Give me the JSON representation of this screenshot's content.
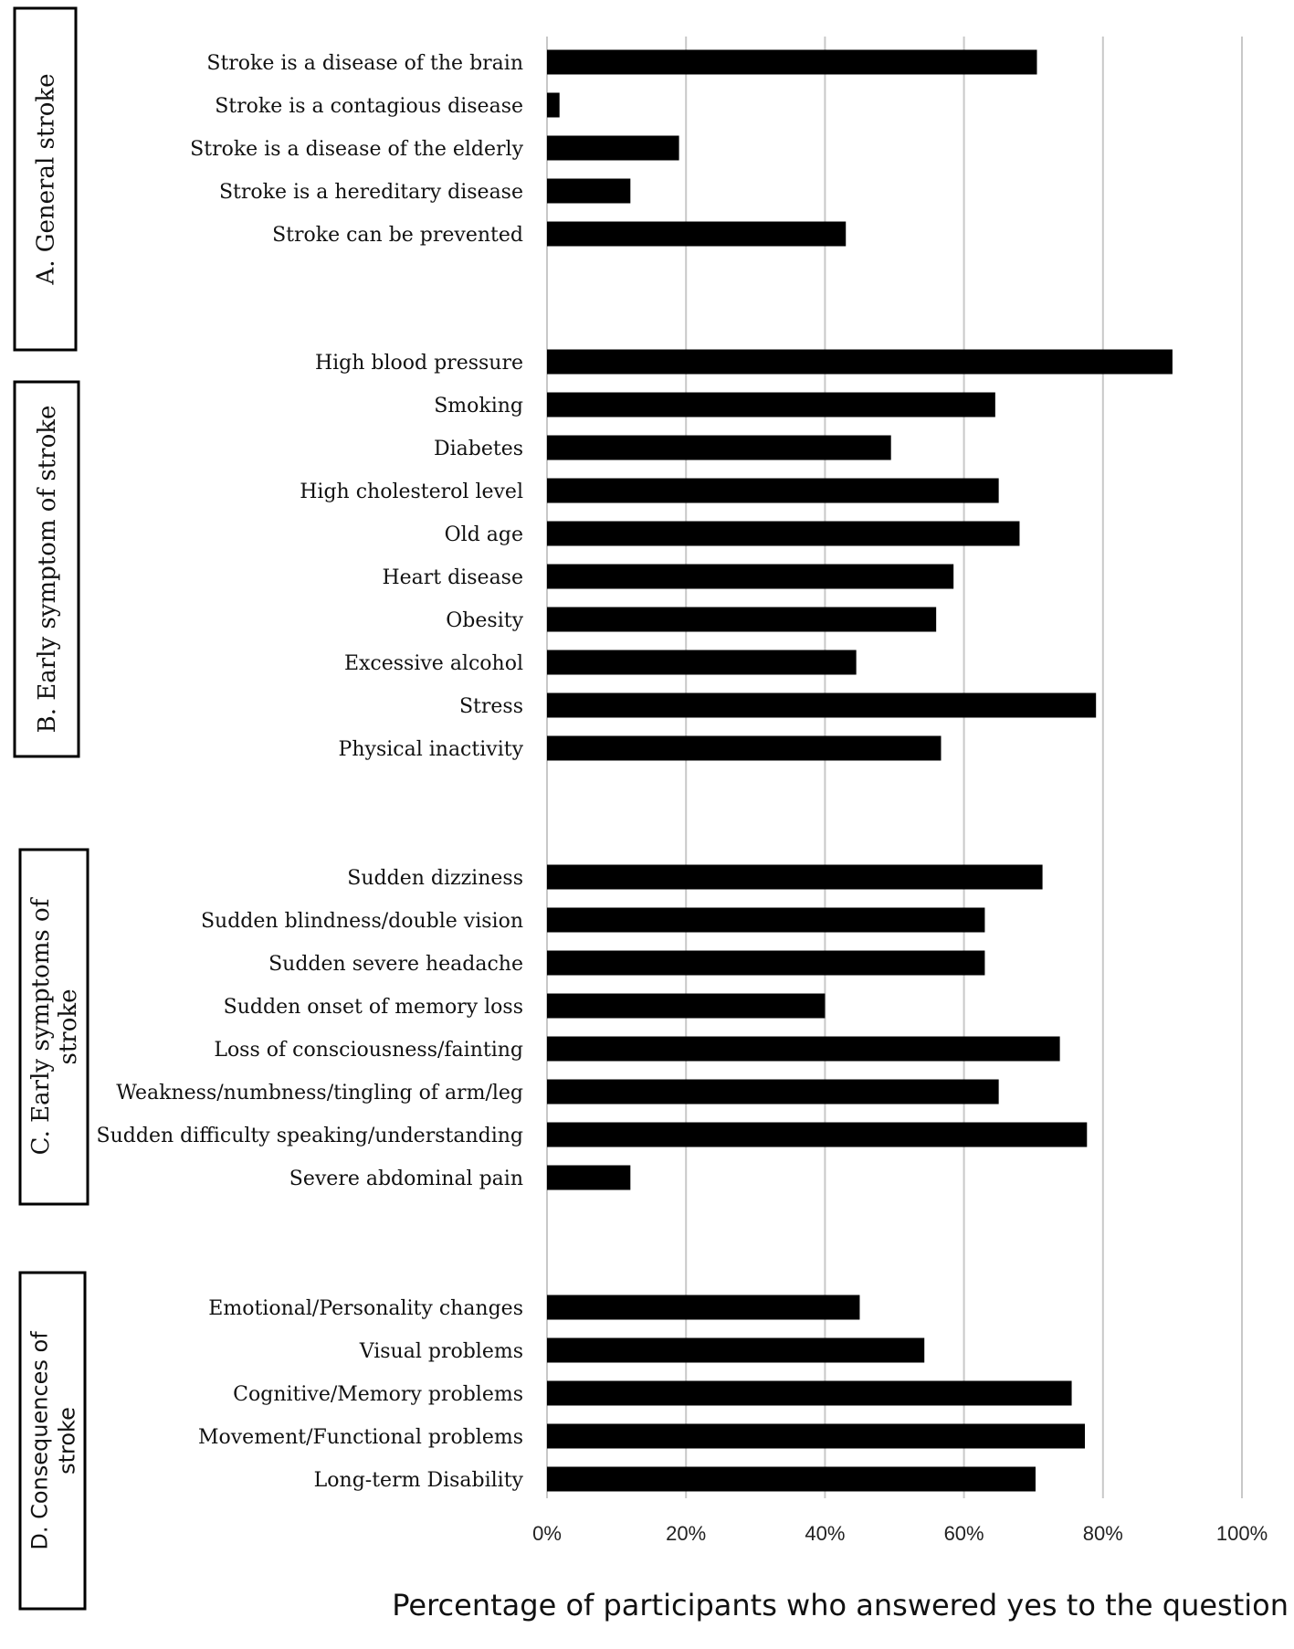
{
  "chart_data": {
    "type": "bar",
    "orientation": "horizontal",
    "xlabel": "Percentage of participants who answered yes to the question",
    "xlim": [
      0,
      100
    ],
    "x_ticks": [
      "0%",
      "20%",
      "40%",
      "60%",
      "80%",
      "100%"
    ],
    "grid": true,
    "bar_color": "#000000",
    "groups": [
      {
        "label_lines": [
          "A. General stroke"
        ],
        "categories": [
          "Stroke is a disease of the brain",
          "Stroke is a contagious disease",
          "Stroke is a disease of the elderly",
          "Stroke is a hereditary disease",
          "Stroke can be prevented"
        ],
        "values": [
          70.5,
          1.8,
          19,
          12,
          43
        ]
      },
      {
        "label_lines": [
          "B. Early symptom of stroke"
        ],
        "categories": [
          "High blood pressure",
          "Smoking",
          "Diabetes",
          "High cholesterol level",
          "Old age",
          "Heart disease",
          "Obesity",
          "Excessive alcohol",
          "Stress",
          "Physical inactivity"
        ],
        "values": [
          90,
          64.5,
          49.5,
          65,
          68,
          58.5,
          56,
          44.5,
          79,
          56.7
        ]
      },
      {
        "label_lines": [
          "C. Early symptoms of",
          "stroke"
        ],
        "categories": [
          "Sudden dizziness",
          "Sudden blindness/double vision",
          "Sudden severe headache",
          "Sudden onset of memory loss",
          "Loss of consciousness/fainting",
          "Weakness/numbness/tingling of arm/leg",
          "Sudden difficulty speaking/understanding",
          "Severe abdominal pain"
        ],
        "values": [
          71.3,
          63,
          63,
          40,
          73.8,
          65,
          77.7,
          12
        ]
      },
      {
        "label_lines": [
          "D. Consequences of",
          "stroke"
        ],
        "categories": [
          "Emotional/Personality changes",
          "Visual problems",
          "Cognitive/Memory problems",
          "Movement/Functional problems",
          "Long-term Disability"
        ],
        "values": [
          45,
          54.3,
          75.5,
          77.4,
          70.3
        ]
      }
    ]
  }
}
